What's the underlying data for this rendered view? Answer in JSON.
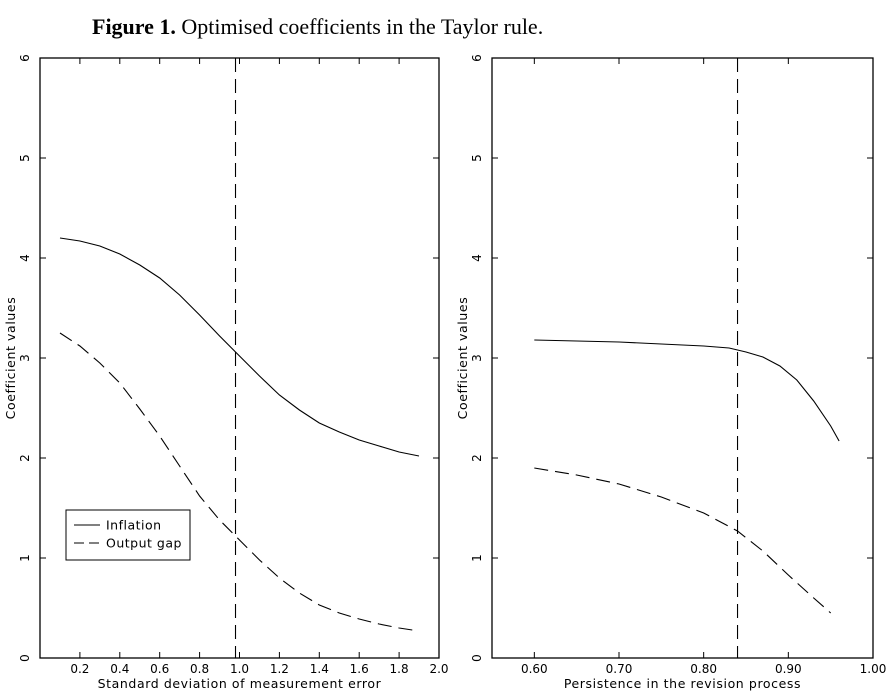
{
  "figure": {
    "label": "Figure 1.",
    "caption": "Optimised coefficients in the Taylor rule."
  },
  "chart_data": [
    {
      "type": "line",
      "xlabel": "Standard deviation of measurement error",
      "ylabel": "Coefficient values",
      "xlim": [
        0.0,
        2.0
      ],
      "ylim": [
        0,
        6
      ],
      "xticks": [
        "0.2",
        "0.4",
        "0.6",
        "0.8",
        "1.0",
        "1.2",
        "1.4",
        "1.6",
        "1.8",
        "2.0"
      ],
      "xtick_values": [
        0.2,
        0.4,
        0.6,
        0.8,
        1.0,
        1.2,
        1.4,
        1.6,
        1.8,
        2.0
      ],
      "yticks": [
        "0",
        "1",
        "2",
        "3",
        "4",
        "5",
        "6"
      ],
      "ytick_values": [
        0,
        1,
        2,
        3,
        4,
        5,
        6
      ],
      "vline": 0.98,
      "legend_position": "lower-left",
      "grid": false,
      "series": [
        {
          "name": "Inflation",
          "style": "solid",
          "x": [
            0.1,
            0.2,
            0.3,
            0.4,
            0.5,
            0.6,
            0.7,
            0.8,
            0.9,
            1.0,
            1.1,
            1.2,
            1.3,
            1.4,
            1.5,
            1.6,
            1.7,
            1.8,
            1.9
          ],
          "y": [
            4.2,
            4.17,
            4.12,
            4.04,
            3.93,
            3.8,
            3.63,
            3.43,
            3.22,
            3.02,
            2.82,
            2.63,
            2.48,
            2.35,
            2.26,
            2.18,
            2.12,
            2.06,
            2.02
          ]
        },
        {
          "name": "Output gap",
          "style": "dashed",
          "x": [
            0.1,
            0.2,
            0.3,
            0.4,
            0.5,
            0.6,
            0.7,
            0.8,
            0.9,
            1.0,
            1.1,
            1.2,
            1.3,
            1.4,
            1.5,
            1.6,
            1.7,
            1.8,
            1.9
          ],
          "y": [
            3.25,
            3.12,
            2.95,
            2.75,
            2.49,
            2.22,
            1.92,
            1.62,
            1.38,
            1.18,
            0.98,
            0.8,
            0.65,
            0.53,
            0.45,
            0.39,
            0.34,
            0.3,
            0.27
          ]
        }
      ]
    },
    {
      "type": "line",
      "xlabel": "Persistence in the revision process",
      "ylabel": "Coefficient values",
      "xlim": [
        0.55,
        1.0
      ],
      "ylim": [
        0,
        6
      ],
      "xticks": [
        "0.60",
        "0.70",
        "0.80",
        "0.90",
        "1.00"
      ],
      "xtick_values": [
        0.6,
        0.7,
        0.8,
        0.9,
        1.0
      ],
      "yticks": [
        "0",
        "1",
        "2",
        "3",
        "4",
        "5",
        "6"
      ],
      "ytick_values": [
        0,
        1,
        2,
        3,
        4,
        5,
        6
      ],
      "vline": 0.84,
      "grid": false,
      "series": [
        {
          "name": "Inflation",
          "style": "solid",
          "x": [
            0.6,
            0.65,
            0.7,
            0.75,
            0.8,
            0.83,
            0.85,
            0.87,
            0.89,
            0.91,
            0.93,
            0.95,
            0.96
          ],
          "y": [
            3.18,
            3.17,
            3.16,
            3.14,
            3.12,
            3.1,
            3.06,
            3.01,
            2.92,
            2.78,
            2.57,
            2.32,
            2.17
          ]
        },
        {
          "name": "Output gap",
          "style": "dashed",
          "x": [
            0.6,
            0.65,
            0.7,
            0.75,
            0.8,
            0.84,
            0.87,
            0.9,
            0.93,
            0.95
          ],
          "y": [
            1.9,
            1.83,
            1.74,
            1.61,
            1.45,
            1.27,
            1.07,
            0.83,
            0.6,
            0.45
          ]
        }
      ]
    }
  ]
}
